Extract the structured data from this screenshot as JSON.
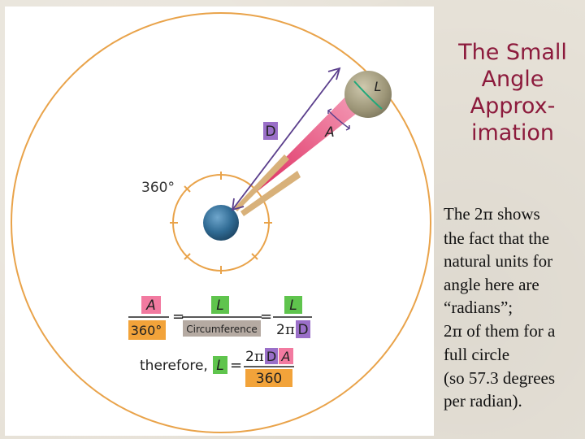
{
  "slide": {
    "title_lines": [
      "The Small",
      "Angle",
      "Approx-",
      "imation"
    ],
    "body": {
      "line1_pre": "The 2",
      "line1_pi": "π",
      "line1_post": " shows",
      "line2": "the fact that the",
      "line3": "natural units for",
      "line4": "angle here are",
      "line5": "“radians”;",
      "line6_pre": "2",
      "line6_pi": "π",
      "line6_post": " of them for a",
      "line7": "full circle",
      "line8": "(so 57.3 degrees",
      "line9": "per radian)."
    }
  },
  "figure": {
    "colors": {
      "outer_circle": "#e9a34a",
      "inner_circle": "#e9a34a",
      "planet": "#2f6a93",
      "moon": "#9c9577",
      "beam": "#e0306a",
      "arrow": "#5b3f8c",
      "green_arc": "#1fa87a",
      "pink_box": "#f27aa0",
      "green_box": "#5fc44d",
      "purple_box": "#9a6fc8",
      "orange_box": "#f2a33a",
      "gray_box": "#b5aaa2"
    },
    "labels": {
      "distance": "D",
      "angle": "A",
      "length": "L",
      "full_circle": "360°"
    },
    "equation": {
      "a": "A",
      "deg360": "360°",
      "l1": "L",
      "circumference": "Circumference",
      "l2": "L",
      "two": "2",
      "pi": "π",
      "d": "D",
      "eq": "=",
      "therefore": "therefore,",
      "l3": "L",
      "eq2": "=",
      "two2": "2",
      "pi2": "π",
      "d2": "D",
      "a2": "A",
      "deg360_2": "360"
    }
  }
}
